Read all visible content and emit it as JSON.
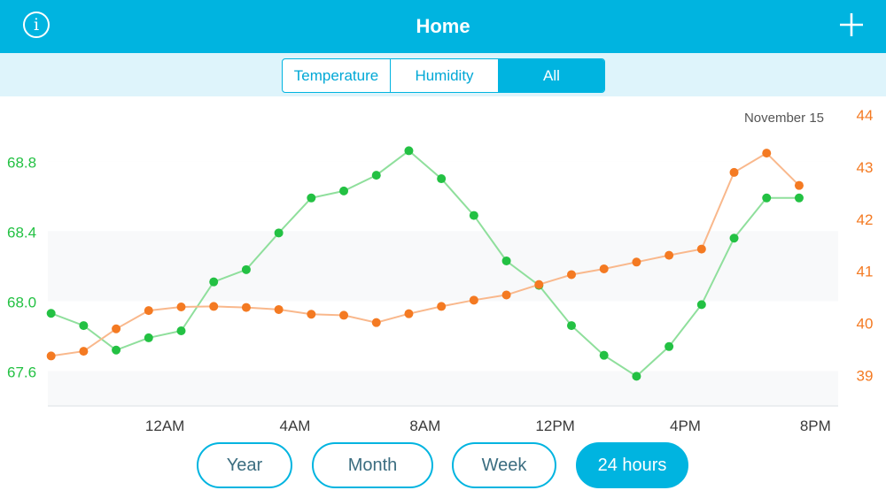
{
  "header": {
    "title": "Home",
    "info_icon": "i"
  },
  "tabs": [
    {
      "label": "Temperature",
      "active": false
    },
    {
      "label": "Humidity",
      "active": false
    },
    {
      "label": "All",
      "active": true
    }
  ],
  "ranges": [
    {
      "label": "Year",
      "active": false
    },
    {
      "label": "Month",
      "active": false
    },
    {
      "label": "Week",
      "active": false
    },
    {
      "label": "24 hours",
      "active": true
    }
  ],
  "colors": {
    "accent": "#00b4e0",
    "temperature": "#23c143",
    "humidity": "#f47a22",
    "subbar": "#def4fb"
  },
  "chart_data": {
    "type": "line",
    "date_label": "November 15",
    "x_ticks": [
      "12AM",
      "4AM",
      "8AM",
      "12PM",
      "4PM",
      "8PM"
    ],
    "left_axis": {
      "ticks": [
        67.6,
        68.0,
        68.4,
        68.8
      ],
      "range": [
        67.4,
        69.1
      ]
    },
    "right_axis": {
      "ticks": [
        39,
        40,
        41,
        42,
        43,
        44
      ],
      "range": [
        38.4,
        44.1
      ]
    },
    "x_hours": [
      -3.5,
      -2.5,
      -1.5,
      -0.5,
      0.5,
      1.5,
      2.5,
      3.5,
      4.5,
      5.5,
      6.5,
      7.5,
      8.5,
      9.5,
      10.5,
      11.5,
      12.5,
      13.5,
      14.5,
      15.5,
      16.5,
      17.5,
      18.5,
      19.5
    ],
    "x_hour_range": [
      -3.6,
      20.7
    ],
    "grid": true,
    "series": [
      {
        "axis": "left",
        "color": "#23c143",
        "values": [
          67.93,
          67.86,
          67.72,
          67.79,
          67.83,
          68.11,
          68.18,
          68.39,
          68.59,
          68.63,
          68.72,
          68.86,
          68.7,
          68.49,
          68.23,
          68.09,
          67.86,
          67.69,
          67.57,
          67.74,
          67.98,
          68.36,
          68.59,
          68.59
        ]
      },
      {
        "axis": "right",
        "color": "#f47a22",
        "values": [
          39.36,
          39.45,
          39.88,
          40.23,
          40.3,
          40.31,
          40.29,
          40.25,
          40.16,
          40.14,
          40.0,
          40.17,
          40.31,
          40.43,
          40.53,
          40.73,
          40.92,
          41.03,
          41.16,
          41.29,
          41.41,
          42.88,
          43.25,
          42.63
        ]
      }
    ]
  }
}
